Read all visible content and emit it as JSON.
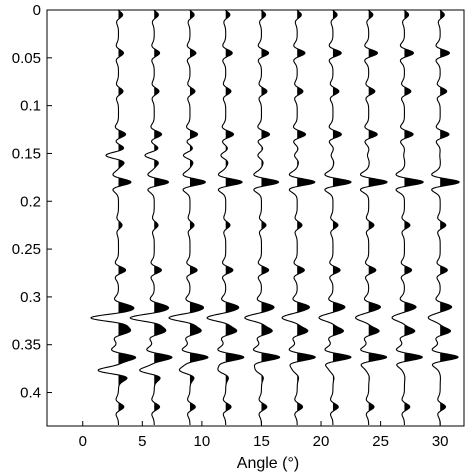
{
  "chart_data": {
    "type": "line",
    "subtype": "seismic-wiggle-traces",
    "title": "",
    "xlabel": "Angle (°)",
    "ylabel": "",
    "xlim": [
      -3,
      32
    ],
    "ylim": [
      0.435,
      0
    ],
    "y_inverted": true,
    "grid": false,
    "legend": "none",
    "xticks": [
      0,
      5,
      10,
      15,
      20,
      25,
      30
    ],
    "yticks": [
      0,
      0.05,
      0.1,
      0.15,
      0.2,
      0.25,
      0.3,
      0.35,
      0.4
    ],
    "ytick_labels": [
      "0",
      "0.05",
      "0.1",
      "0.15",
      "0.2",
      "0.25",
      "0.3",
      "0.35",
      "0.4"
    ],
    "trace_angles": [
      3,
      6,
      9,
      12,
      15,
      18,
      21,
      24,
      27,
      30
    ],
    "amplitude_scale_degrees": 1,
    "positive_fill": "black",
    "events": [
      {
        "time": 0.005,
        "amplitude": [
          0.35,
          0.35,
          0.35,
          0.35,
          0.35,
          0.35,
          0.35,
          0.35,
          0.35,
          0.35
        ]
      },
      {
        "time": 0.045,
        "amplitude": [
          0.42,
          0.45,
          0.5,
          0.55,
          0.6,
          0.65,
          0.7,
          0.74,
          0.76,
          0.78
        ]
      },
      {
        "time": 0.085,
        "amplitude": [
          0.38,
          0.4,
          0.42,
          0.44,
          0.46,
          0.48,
          0.5,
          0.52,
          0.54,
          0.55
        ]
      },
      {
        "time": 0.13,
        "amplitude": [
          0.6,
          0.62,
          0.64,
          0.66,
          0.68,
          0.7,
          0.71,
          0.72,
          0.73,
          0.74
        ]
      },
      {
        "time": 0.152,
        "amplitude": [
          -1.05,
          -0.78,
          -0.55,
          -0.4,
          -0.3,
          -0.22,
          -0.15,
          -0.1,
          -0.06,
          -0.03
        ]
      },
      {
        "time": 0.18,
        "amplitude": [
          1.05,
          1.2,
          1.3,
          1.38,
          1.44,
          1.48,
          1.52,
          1.55,
          1.58,
          1.6
        ]
      },
      {
        "time": 0.225,
        "amplitude": [
          0.3,
          0.32,
          0.34,
          0.36,
          0.38,
          0.4,
          0.42,
          0.44,
          0.46,
          0.47
        ]
      },
      {
        "time": 0.272,
        "amplitude": [
          0.6,
          0.6,
          0.6,
          0.6,
          0.6,
          0.6,
          0.6,
          0.6,
          0.6,
          0.6
        ]
      },
      {
        "time": 0.31,
        "amplitude": [
          0.75,
          0.76,
          0.77,
          0.78,
          0.79,
          0.8,
          0.8,
          0.8,
          0.8,
          0.8
        ]
      },
      {
        "time": 0.322,
        "amplitude": [
          -2.1,
          -1.8,
          -1.55,
          -1.35,
          -1.18,
          -1.05,
          -0.95,
          -0.88,
          -0.82,
          -0.78
        ]
      },
      {
        "time": 0.336,
        "amplitude": [
          0.8,
          0.8,
          0.8,
          0.8,
          0.8,
          0.8,
          0.8,
          0.8,
          0.8,
          0.8
        ]
      },
      {
        "time": 0.363,
        "amplitude": [
          1.3,
          1.4,
          1.45,
          1.48,
          1.5,
          1.5,
          1.5,
          1.5,
          1.5,
          1.5
        ]
      },
      {
        "time": 0.377,
        "amplitude": [
          -1.6,
          -1.1,
          -0.75,
          -0.5,
          -0.35,
          -0.25,
          -0.18,
          -0.12,
          -0.08,
          -0.05
        ]
      },
      {
        "time": 0.415,
        "amplitude": [
          0.45,
          0.45,
          0.45,
          0.45,
          0.45,
          0.45,
          0.45,
          0.45,
          0.45,
          0.45
        ]
      }
    ],
    "wavelet_width": 0.0065
  }
}
